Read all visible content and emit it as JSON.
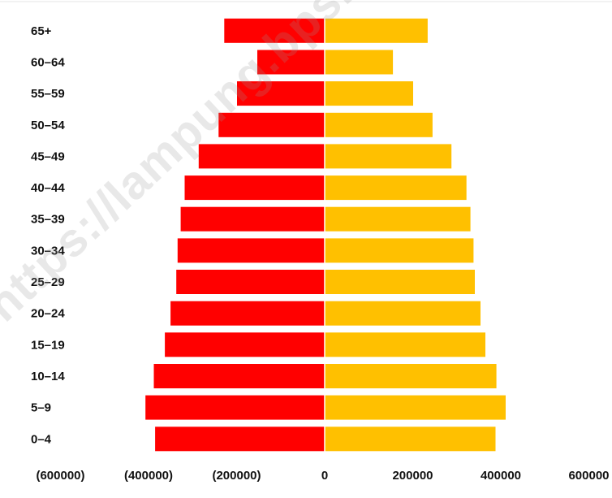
{
  "chart_data": {
    "type": "bar",
    "orientation": "horizontal",
    "subtype": "population-pyramid",
    "categories": [
      "0–4",
      "5–9",
      "10–14",
      "15–19",
      "20–24",
      "25–29",
      "30–34",
      "35–39",
      "40–44",
      "45–49",
      "50–54",
      "55–59",
      "60–64",
      "65+"
    ],
    "series": [
      {
        "color": "#ff0000",
        "values": [
          -385000,
          -407000,
          -388000,
          -363000,
          -350000,
          -337000,
          -334000,
          -327000,
          -318000,
          -286000,
          -241000,
          -199000,
          -153000,
          -228000
        ]
      },
      {
        "color": "#ffc000",
        "values": [
          388000,
          411000,
          390000,
          365000,
          354000,
          341000,
          338000,
          331000,
          322000,
          288000,
          245000,
          201000,
          155000,
          234000
        ]
      }
    ],
    "xlim": [
      -600000,
      600000
    ],
    "x_ticks": [
      -600000,
      -400000,
      -200000,
      0,
      200000,
      400000,
      600000
    ],
    "x_tick_labels": [
      "(600000)",
      "(400000)",
      "(200000)",
      "0",
      "200000",
      "400000",
      "600000"
    ],
    "grid": false,
    "legend": "none"
  },
  "watermark": "https://lampung.bps.go.id"
}
